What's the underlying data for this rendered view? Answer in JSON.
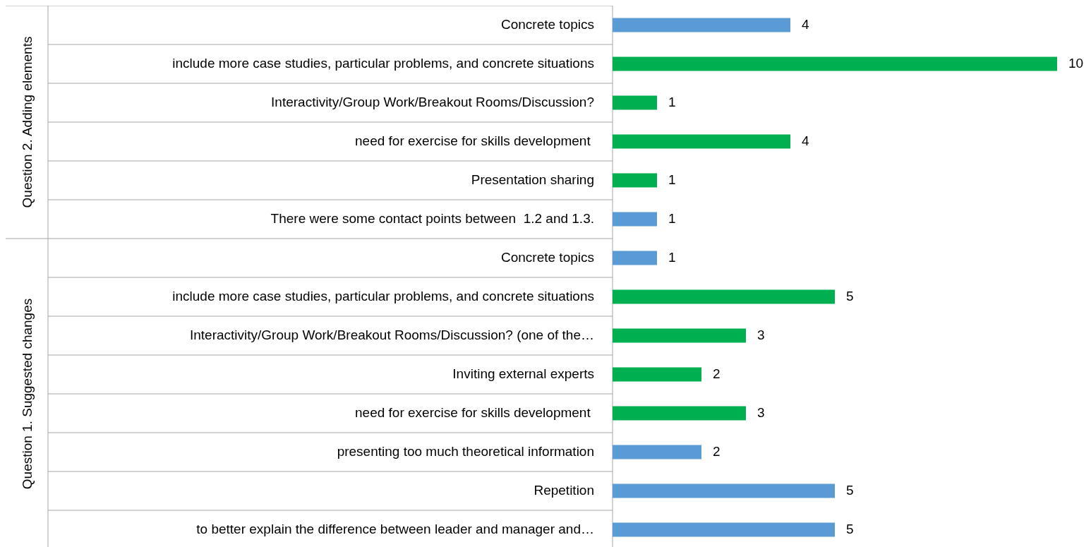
{
  "chart_data": [
    {
      "type": "bar",
      "orientation": "horizontal",
      "ylabel": "Question 2. Adding elements",
      "data_labels": true,
      "categories": [
        "Concrete topics",
        "include more case studies, particular problems, and concrete situations",
        "Interactivity/Group Work/Breakout Rooms/Discussion?",
        "need for exercise for skills development ",
        "Presentation sharing",
        "There were some contact points between  1.2 and 1.3."
      ],
      "values": [
        4,
        10,
        1,
        4,
        1,
        1
      ],
      "colors": [
        "#5b9bd5",
        "#00b050",
        "#00b050",
        "#00b050",
        "#00b050",
        "#5b9bd5"
      ]
    },
    {
      "type": "bar",
      "orientation": "horizontal",
      "ylabel": "Question 1. Suggested changes",
      "data_labels": true,
      "categories": [
        "Concrete topics",
        "include more case studies, particular problems, and concrete situations",
        "Interactivity/Group Work/Breakout Rooms/Discussion? (one of the…",
        "Inviting external experts",
        "need for exercise for skills development ",
        "presenting too much theoretical information",
        "Repetition",
        "to better explain the difference between leader and manager and…"
      ],
      "values": [
        1,
        5,
        3,
        2,
        3,
        2,
        5,
        5
      ],
      "colors": [
        "#5b9bd5",
        "#00b050",
        "#00b050",
        "#00b050",
        "#00b050",
        "#5b9bd5",
        "#5b9bd5",
        "#5b9bd5"
      ]
    }
  ]
}
